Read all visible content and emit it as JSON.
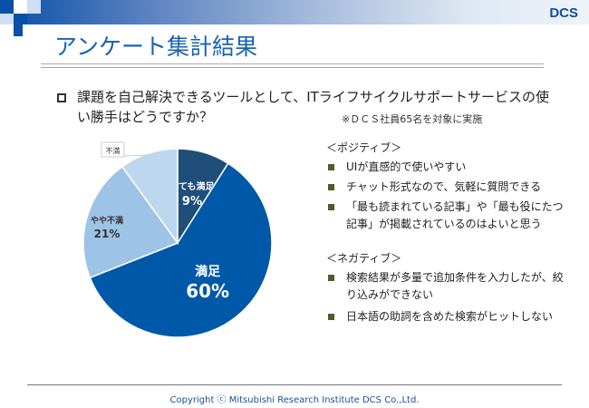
{
  "header": {
    "title": "アンケート集計結果",
    "logo": "DCS"
  },
  "question": {
    "text": "課題を自己解決できるツールとして、ITライフサイクルサポートサービスの使い勝手はどうですか？",
    "note": "※ＤＣＳ社員65名を対象に実施"
  },
  "chart_data": {
    "type": "pie",
    "start": "top",
    "direction": "clockwise",
    "slices": [
      {
        "label": "とても満足",
        "value": 9,
        "value_label": "9%",
        "color": "#1f4e79"
      },
      {
        "label": "満足",
        "value": 60,
        "value_label": "60%",
        "color": "#0058a8"
      },
      {
        "label": "やや不満",
        "value": 21,
        "value_label": "21%",
        "color": "#9dc3e6"
      },
      {
        "label": "不満",
        "value": 10,
        "value_label": "",
        "color": "#bdd7ee"
      }
    ]
  },
  "positive": {
    "heading": "＜ポジティブ＞",
    "items": [
      "UIが直感的で使いやすい",
      "チャット形式なので、気軽に質問できる",
      "「最も読まれている記事」や「最も役にたつ記事」が掲載されているのはよいと思う"
    ]
  },
  "negative": {
    "heading": "＜ネガティブ＞",
    "items": [
      "検索結果が多量で追加条件を入力したが、絞り込みができない",
      "日本語の助詞を含めた検索がヒットしない"
    ]
  },
  "footer": {
    "copyright": "Copyright ⓒ Mitsubishi Research Institute DCS Co.,Ltd."
  }
}
